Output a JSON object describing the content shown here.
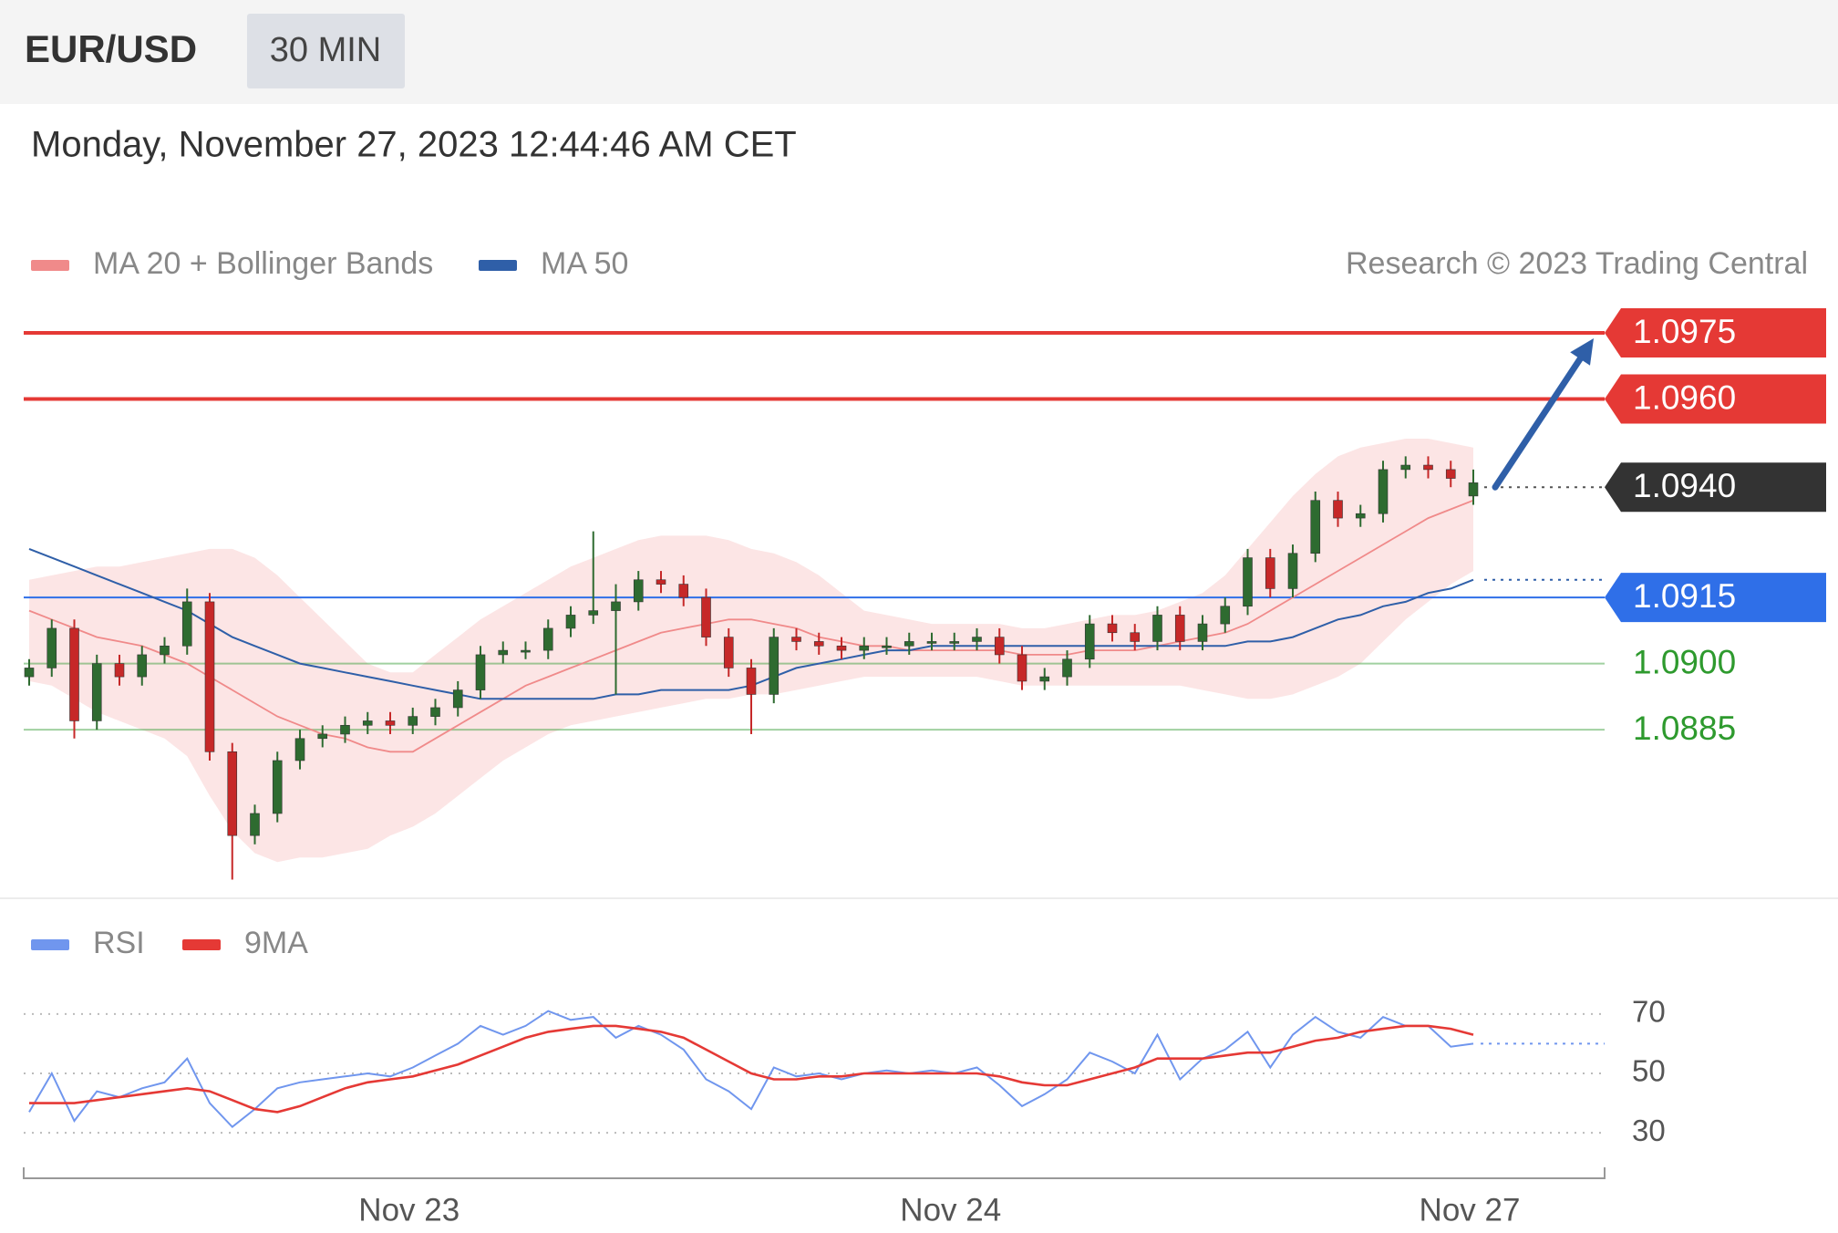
{
  "header": {
    "symbol": "EUR/USD",
    "interval": "30 MIN"
  },
  "timestamp": "Monday, November 27, 2023 12:44:46 AM CET",
  "attribution": "Research © 2023 Trading Central",
  "chart_data": [
    {
      "type": "candlestick",
      "ylim": [
        1.0848,
        1.0981
      ],
      "up_color": "#2e6b30",
      "down_color": "#c62828",
      "open": [
        1.0897,
        1.0899,
        1.0908,
        1.0887,
        1.09,
        1.0897,
        1.0902,
        1.0904,
        1.0914,
        1.088,
        1.0861,
        1.0866,
        1.0878,
        1.0883,
        1.0884,
        1.0886,
        1.0887,
        1.0886,
        1.0888,
        1.089,
        1.0894,
        1.0902,
        1.0903,
        1.0903,
        1.0908,
        1.0911,
        1.0912,
        1.0914,
        1.0919,
        1.0918,
        1.0915,
        1.0906,
        1.0899,
        1.0893,
        1.0906,
        1.0905,
        1.0904,
        1.0903,
        1.0904,
        1.0904,
        1.0905,
        1.0905,
        1.0905,
        1.0906,
        1.0902,
        1.0896,
        1.0897,
        1.0901,
        1.0909,
        1.0907,
        1.0905,
        1.0911,
        1.0905,
        1.0909,
        1.0913,
        1.0924,
        1.0917,
        1.0925,
        1.0937,
        1.0933,
        1.0934,
        1.0944,
        1.0945,
        1.0944,
        1.0938
      ],
      "high": [
        1.0901,
        1.091,
        1.091,
        1.0902,
        1.0902,
        1.0904,
        1.0906,
        1.0917,
        1.0916,
        1.0882,
        1.0868,
        1.088,
        1.0885,
        1.0886,
        1.0888,
        1.0889,
        1.0889,
        1.089,
        1.0892,
        1.0896,
        1.0904,
        1.0905,
        1.0905,
        1.091,
        1.0913,
        1.093,
        1.0918,
        1.0921,
        1.0921,
        1.092,
        1.0917,
        1.0908,
        1.0901,
        1.0908,
        1.0908,
        1.0907,
        1.0906,
        1.0906,
        1.0906,
        1.0907,
        1.0907,
        1.0907,
        1.0908,
        1.0908,
        1.0904,
        1.0899,
        1.0903,
        1.0911,
        1.0911,
        1.0909,
        1.0913,
        1.0913,
        1.0911,
        1.0915,
        1.0926,
        1.0926,
        1.0927,
        1.0939,
        1.0939,
        1.0936,
        1.0946,
        1.0947,
        1.0947,
        1.0946,
        1.0944
      ],
      "low": [
        1.0895,
        1.0897,
        1.0883,
        1.0885,
        1.0895,
        1.0895,
        1.09,
        1.0902,
        1.0878,
        1.0851,
        1.0859,
        1.0864,
        1.0876,
        1.0881,
        1.0882,
        1.0884,
        1.0884,
        1.0884,
        1.0886,
        1.0888,
        1.0892,
        1.09,
        1.0901,
        1.0901,
        1.0906,
        1.0909,
        1.0893,
        1.0912,
        1.0916,
        1.0913,
        1.0904,
        1.0897,
        1.0884,
        1.0891,
        1.0903,
        1.0902,
        1.0901,
        1.0901,
        1.0902,
        1.0902,
        1.0903,
        1.0903,
        1.0903,
        1.09,
        1.0894,
        1.0894,
        1.0895,
        1.0899,
        1.0905,
        1.0903,
        1.0903,
        1.0903,
        1.0903,
        1.0907,
        1.0911,
        1.0915,
        1.0915,
        1.0923,
        1.0931,
        1.0931,
        1.0932,
        1.0942,
        1.0942,
        1.094,
        1.0936
      ],
      "close": [
        1.0899,
        1.0908,
        1.0887,
        1.09,
        1.0897,
        1.0902,
        1.0904,
        1.0914,
        1.088,
        1.0861,
        1.0866,
        1.0878,
        1.0883,
        1.0884,
        1.0886,
        1.0887,
        1.0886,
        1.0888,
        1.089,
        1.0894,
        1.0902,
        1.0903,
        1.0903,
        1.0908,
        1.0911,
        1.0912,
        1.0914,
        1.0919,
        1.0918,
        1.0915,
        1.0906,
        1.0899,
        1.0893,
        1.0906,
        1.0905,
        1.0904,
        1.0903,
        1.0904,
        1.0904,
        1.0905,
        1.0905,
        1.0905,
        1.0906,
        1.0902,
        1.0896,
        1.0897,
        1.0901,
        1.0909,
        1.0907,
        1.0905,
        1.0911,
        1.0905,
        1.0909,
        1.0913,
        1.0924,
        1.0917,
        1.0925,
        1.0937,
        1.0933,
        1.0934,
        1.0944,
        1.0945,
        1.0944,
        1.0942,
        1.0941
      ],
      "series": [
        {
          "name": "MA 20 + Bollinger Bands",
          "color": "#f08a8a",
          "values": [
            1.0912,
            1.091,
            1.0908,
            1.0906,
            1.0905,
            1.0904,
            1.0902,
            1.09,
            1.0897,
            1.0894,
            1.0891,
            1.0888,
            1.0886,
            1.0884,
            1.0883,
            1.0881,
            1.088,
            1.088,
            1.0883,
            1.0886,
            1.0889,
            1.0892,
            1.0895,
            1.0897,
            1.0899,
            1.0901,
            1.0903,
            1.0905,
            1.0907,
            1.0908,
            1.0909,
            1.091,
            1.091,
            1.0909,
            1.0908,
            1.0906,
            1.0905,
            1.0904,
            1.0904,
            1.0903,
            1.0903,
            1.0903,
            1.0903,
            1.0903,
            1.0902,
            1.0902,
            1.0902,
            1.0903,
            1.0903,
            1.0903,
            1.0904,
            1.0905,
            1.0906,
            1.0907,
            1.0909,
            1.0912,
            1.0915,
            1.0918,
            1.0921,
            1.0924,
            1.0927,
            1.093,
            1.0933,
            1.0935,
            1.0937
          ],
          "upper": [
            1.0919,
            1.092,
            1.0921,
            1.0922,
            1.0922,
            1.0923,
            1.0924,
            1.0925,
            1.0926,
            1.0926,
            1.0924,
            1.092,
            1.0915,
            1.091,
            1.0905,
            1.09,
            1.0898,
            1.0898,
            1.0902,
            1.0906,
            1.091,
            1.0913,
            1.0916,
            1.0919,
            1.0922,
            1.0924,
            1.0926,
            1.0928,
            1.0929,
            1.0929,
            1.0929,
            1.0928,
            1.0926,
            1.0925,
            1.0923,
            1.092,
            1.0916,
            1.0912,
            1.0911,
            1.091,
            1.0909,
            1.0909,
            1.0909,
            1.0909,
            1.0908,
            1.0908,
            1.0909,
            1.091,
            1.0911,
            1.0911,
            1.0912,
            1.0914,
            1.0916,
            1.092,
            1.0926,
            1.0932,
            1.0938,
            1.0943,
            1.0947,
            1.0949,
            1.095,
            1.0951,
            1.0951,
            1.095,
            1.0949
          ],
          "lower": [
            1.0896,
            1.0895,
            1.0892,
            1.0889,
            1.0887,
            1.0885,
            1.0883,
            1.0879,
            1.087,
            1.0862,
            1.0857,
            1.0855,
            1.0856,
            1.0856,
            1.0857,
            1.0858,
            1.0861,
            1.0863,
            1.0866,
            1.087,
            1.0874,
            1.0878,
            1.0881,
            1.0884,
            1.0886,
            1.0887,
            1.0888,
            1.0889,
            1.089,
            1.0891,
            1.0892,
            1.0892,
            1.0893,
            1.0893,
            1.0894,
            1.0895,
            1.0896,
            1.0897,
            1.0897,
            1.0897,
            1.0897,
            1.0897,
            1.0897,
            1.0896,
            1.0895,
            1.0895,
            1.0895,
            1.0895,
            1.0895,
            1.0895,
            1.0895,
            1.0895,
            1.0894,
            1.0893,
            1.0892,
            1.0892,
            1.0893,
            1.0895,
            1.0897,
            1.09,
            1.0905,
            1.091,
            1.0914,
            1.0918,
            1.0921
          ]
        },
        {
          "name": "MA 50",
          "color": "#2f5fa8",
          "values": [
            1.0926,
            1.0924,
            1.0922,
            1.092,
            1.0918,
            1.0916,
            1.0914,
            1.0912,
            1.0909,
            1.0906,
            1.0904,
            1.0902,
            1.09,
            1.0899,
            1.0898,
            1.0897,
            1.0896,
            1.0895,
            1.0894,
            1.0893,
            1.0892,
            1.0892,
            1.0892,
            1.0892,
            1.0892,
            1.0892,
            1.0893,
            1.0893,
            1.0894,
            1.0894,
            1.0894,
            1.0894,
            1.0895,
            1.0897,
            1.0899,
            1.09,
            1.0901,
            1.0902,
            1.0903,
            1.0903,
            1.0904,
            1.0904,
            1.0904,
            1.0904,
            1.0904,
            1.0904,
            1.0904,
            1.0904,
            1.0904,
            1.0904,
            1.0904,
            1.0904,
            1.0904,
            1.0904,
            1.0905,
            1.0905,
            1.0906,
            1.0908,
            1.091,
            1.0911,
            1.0913,
            1.0914,
            1.0916,
            1.0917,
            1.0919
          ]
        }
      ],
      "current_price": {
        "value": 1.094,
        "label": "1.0940",
        "color": "#333333"
      },
      "target_color": "#2f5fa8",
      "levels": [
        {
          "value": 1.0975,
          "label": "1.0975",
          "color": "#e53935",
          "label_style": "box"
        },
        {
          "value": 1.096,
          "label": "1.0960",
          "color": "#e53935",
          "label_style": "box"
        },
        {
          "value": 1.0915,
          "label": "1.0915",
          "color": "#2f6fe8",
          "label_style": "box"
        },
        {
          "value": 1.09,
          "label": "1.0900",
          "color": "#2e9a2e",
          "label_style": "text"
        },
        {
          "value": 1.0885,
          "label": "1.0885",
          "color": "#2e9a2e",
          "label_style": "text"
        }
      ]
    },
    {
      "type": "line",
      "ylim": [
        23,
        77
      ],
      "yticks": [
        30,
        50,
        70
      ],
      "grid": true,
      "categories": [
        null,
        null,
        null,
        null,
        null,
        null,
        null,
        null,
        null,
        null,
        null,
        null,
        null,
        null,
        null,
        null,
        null,
        "Nov 23",
        null,
        null,
        null,
        null,
        null,
        null,
        null,
        null,
        null,
        null,
        null,
        null,
        null,
        null,
        null,
        null,
        null,
        null,
        null,
        null,
        null,
        null,
        null,
        "Nov 24",
        null,
        null,
        null,
        null,
        null,
        null,
        null,
        null,
        null,
        null,
        null,
        null,
        null,
        null,
        null,
        null,
        null,
        null,
        null,
        null,
        null,
        null,
        "Nov 27"
      ],
      "series": [
        {
          "name": "RSI",
          "color": "#7096ee",
          "values": [
            37,
            50,
            34,
            44,
            42,
            45,
            47,
            55,
            40,
            32,
            38,
            45,
            47,
            48,
            49,
            50,
            49,
            52,
            56,
            60,
            66,
            63,
            66,
            71,
            68,
            69,
            62,
            66,
            63,
            58,
            48,
            44,
            38,
            52,
            49,
            50,
            48,
            50,
            51,
            50,
            51,
            50,
            52,
            46,
            39,
            43,
            48,
            57,
            54,
            50,
            63,
            48,
            55,
            58,
            64,
            52,
            63,
            69,
            64,
            62,
            69,
            66,
            66,
            59,
            60
          ]
        },
        {
          "name": "9MA",
          "color": "#e53935",
          "values": [
            40,
            40,
            40,
            41,
            42,
            43,
            44,
            45,
            44,
            41,
            38,
            37,
            39,
            42,
            45,
            47,
            48,
            49,
            51,
            53,
            56,
            59,
            62,
            64,
            65,
            66,
            66,
            65,
            64,
            62,
            58,
            54,
            50,
            48,
            48,
            49,
            49,
            50,
            50,
            50,
            50,
            50,
            50,
            49,
            47,
            46,
            46,
            48,
            50,
            52,
            55,
            55,
            55,
            56,
            57,
            57,
            59,
            61,
            62,
            64,
            65,
            66,
            66,
            65,
            63
          ]
        }
      ]
    }
  ]
}
